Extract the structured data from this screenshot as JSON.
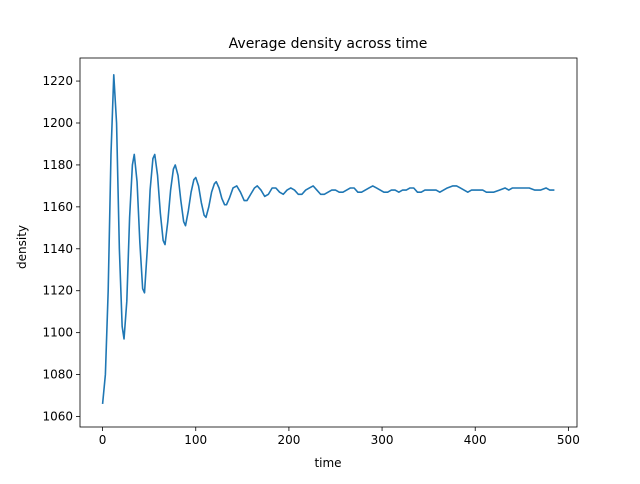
{
  "chart_data": {
    "type": "line",
    "title": "Average density across time",
    "x_label": "time",
    "y_label": "density",
    "x": [
      0,
      3,
      6,
      9,
      12,
      15,
      18,
      21,
      23,
      26,
      29,
      32,
      34,
      37,
      40,
      43,
      45,
      48,
      51,
      54,
      56,
      59,
      62,
      65,
      67,
      70,
      73,
      76,
      78,
      81,
      84,
      87,
      89,
      92,
      95,
      98,
      100,
      103,
      106,
      109,
      111,
      114,
      117,
      120,
      122,
      125,
      128,
      131,
      133,
      136,
      140,
      144,
      148,
      152,
      155,
      159,
      163,
      166,
      170,
      174,
      178,
      182,
      186,
      190,
      194,
      198,
      202,
      206,
      210,
      214,
      218,
      222,
      226,
      230,
      234,
      238,
      242,
      246,
      250,
      254,
      258,
      262,
      266,
      270,
      274,
      278,
      282,
      286,
      290,
      294,
      298,
      302,
      306,
      310,
      314,
      318,
      322,
      326,
      330,
      334,
      338,
      342,
      346,
      350,
      354,
      358,
      362,
      366,
      370,
      376,
      380,
      384,
      388,
      392,
      396,
      400,
      404,
      408,
      412,
      416,
      420,
      426,
      432,
      436,
      440,
      446,
      452,
      458,
      464,
      470,
      476,
      480,
      485
    ],
    "series": [
      {
        "color": "#1f77b4",
        "values": [
          1066,
          1080,
          1120,
          1185,
          1223,
          1200,
          1140,
          1103,
          1097,
          1115,
          1155,
          1180,
          1185,
          1172,
          1143,
          1121,
          1119,
          1140,
          1168,
          1183,
          1185,
          1175,
          1157,
          1144,
          1142,
          1153,
          1168,
          1178,
          1180,
          1175,
          1163,
          1153,
          1151,
          1158,
          1167,
          1173,
          1174,
          1170,
          1162,
          1156,
          1155,
          1160,
          1167,
          1171,
          1172,
          1169,
          1164,
          1161,
          1161,
          1164,
          1169,
          1170,
          1167,
          1163,
          1163,
          1166,
          1169,
          1170,
          1168,
          1165,
          1166,
          1169,
          1169,
          1167,
          1166,
          1168,
          1169,
          1168,
          1166,
          1166,
          1168,
          1169,
          1170,
          1168,
          1166,
          1166,
          1167,
          1168,
          1168,
          1167,
          1167,
          1168,
          1169,
          1169,
          1167,
          1167,
          1168,
          1169,
          1170,
          1169,
          1168,
          1167,
          1167,
          1168,
          1168,
          1167,
          1168,
          1168,
          1169,
          1169,
          1167,
          1167,
          1168,
          1168,
          1168,
          1168,
          1167,
          1168,
          1169,
          1170,
          1170,
          1169,
          1168,
          1167,
          1168,
          1168,
          1168,
          1168,
          1167,
          1167,
          1167,
          1168,
          1169,
          1168,
          1169,
          1169,
          1169,
          1169,
          1168,
          1168,
          1169,
          1168,
          1168
        ]
      }
    ],
    "xlim": [
      -24.25,
      509.25
    ],
    "ylim": [
      1055,
      1231
    ],
    "xticks": [
      0,
      100,
      200,
      300,
      400,
      500
    ],
    "yticks": [
      1060,
      1080,
      1100,
      1120,
      1140,
      1160,
      1180,
      1200,
      1220
    ]
  }
}
